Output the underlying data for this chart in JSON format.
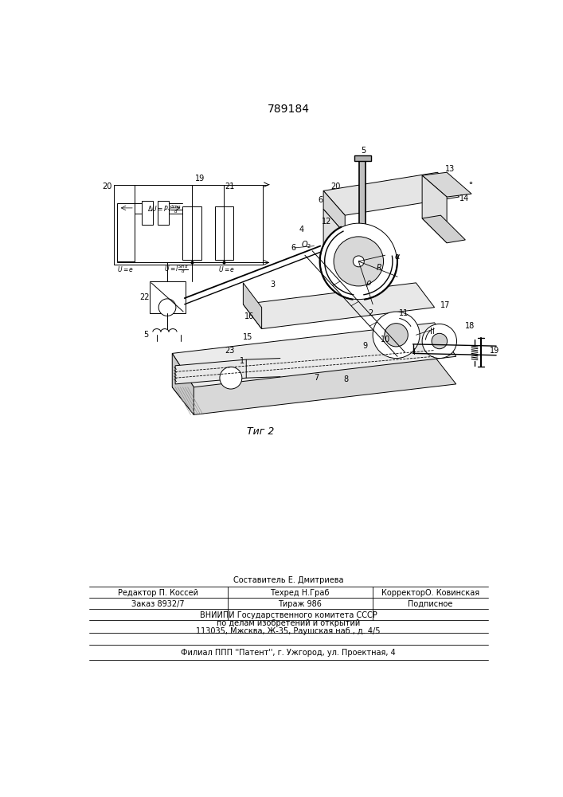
{
  "patent_number": "789184",
  "fig_label": "Τиг 2",
  "bg_color": "#ffffff",
  "line_color": "#000000",
  "footer_text": {
    "line0": "Составитель Е. Дмитриева",
    "editor": "Редактор П. Коссей",
    "tehred": "Техред Н.Граб",
    "corrector": "КорректорО. Ковинская",
    "order": "Заказ 8932/7",
    "tiraj": "Тираж 986",
    "podp": "Подписное",
    "vnipi": "ВНИИПИ Государственного комитета СССР",
    "po_delam": "по делам изобретений и открытий",
    "address": "113035, Мжсква, Ж-35, Раушская наб., д. 4/5",
    "filial": "Филиал ППП ''Патент'', г. Ужгород, ул. Проектная, 4"
  }
}
